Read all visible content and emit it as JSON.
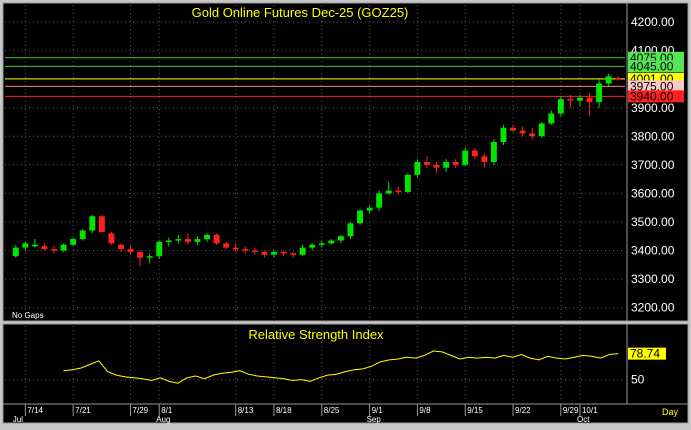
{
  "chart_data": [
    {
      "type": "candlestick",
      "title": "Gold Online Futures Dec-25 (GOZ25)",
      "note": "No Gaps",
      "y_ticks": [
        "3200.00",
        "3300.00",
        "3400.00",
        "3500.00",
        "3600.00",
        "3700.00",
        "3800.00",
        "3900.00",
        "4000.00",
        "4100.00",
        "4200.00"
      ],
      "ylim": [
        3160,
        4260
      ],
      "x_ticks": [
        {
          "label": "7/14",
          "i": 1
        },
        {
          "label": "7/21",
          "i": 6
        },
        {
          "label": "7/29",
          "i": 12
        },
        {
          "label": "8/1",
          "i": 15
        },
        {
          "label": "8/13",
          "i": 23
        },
        {
          "label": "8/18",
          "i": 27
        },
        {
          "label": "8/25",
          "i": 32
        },
        {
          "label": "9/1",
          "i": 37
        },
        {
          "label": "9/8",
          "i": 42
        },
        {
          "label": "9/15",
          "i": 47
        },
        {
          "label": "9/22",
          "i": 52
        },
        {
          "label": "9/29",
          "i": 57
        },
        {
          "label": "10/1",
          "i": 59
        }
      ],
      "month_labels": [
        {
          "label": "Jul",
          "i": 0
        },
        {
          "label": "Aug",
          "i": 15
        },
        {
          "label": "Sep",
          "i": 37
        },
        {
          "label": "Oct",
          "i": 59
        }
      ],
      "period_label": "Day",
      "levels": [
        {
          "value": 4075.0,
          "label": "4075.00",
          "color": "#39c839",
          "label_bg": "#55e655"
        },
        {
          "value": 4045.0,
          "label": "4045.00",
          "color": "#39c839",
          "label_bg": "#55e655"
        },
        {
          "value": 4001.0,
          "label": "4001.00",
          "color": "#ffff00",
          "label_bg": "#ffff00"
        },
        {
          "value": 3975.0,
          "label": "3975.00",
          "color": "#ff8080",
          "label_bg": "#ffc8c8"
        },
        {
          "value": 3940.0,
          "label": "3940.00",
          "color": "#ff2020",
          "label_bg": "#ff2020"
        }
      ],
      "candles": [
        [
          3380,
          3420,
          3375,
          3410
        ],
        [
          3410,
          3430,
          3400,
          3425
        ],
        [
          3420,
          3440,
          3410,
          3420
        ],
        [
          3415,
          3425,
          3400,
          3405
        ],
        [
          3405,
          3415,
          3390,
          3400
        ],
        [
          3400,
          3425,
          3395,
          3420
        ],
        [
          3420,
          3445,
          3415,
          3440
        ],
        [
          3440,
          3475,
          3435,
          3470
        ],
        [
          3470,
          3525,
          3460,
          3520
        ],
        [
          3520,
          3525,
          3460,
          3465
        ],
        [
          3460,
          3465,
          3420,
          3425
        ],
        [
          3420,
          3425,
          3395,
          3405
        ],
        [
          3405,
          3415,
          3385,
          3395
        ],
        [
          3395,
          3400,
          3345,
          3375
        ],
        [
          3375,
          3390,
          3355,
          3380
        ],
        [
          3380,
          3435,
          3370,
          3430
        ],
        [
          3430,
          3445,
          3415,
          3435
        ],
        [
          3435,
          3455,
          3425,
          3440
        ],
        [
          3440,
          3460,
          3420,
          3430
        ],
        [
          3430,
          3450,
          3420,
          3440
        ],
        [
          3440,
          3460,
          3430,
          3455
        ],
        [
          3455,
          3460,
          3420,
          3425
        ],
        [
          3425,
          3430,
          3405,
          3410
        ],
        [
          3410,
          3425,
          3395,
          3405
        ],
        [
          3405,
          3415,
          3390,
          3400
        ],
        [
          3400,
          3410,
          3385,
          3395
        ],
        [
          3395,
          3400,
          3375,
          3385
        ],
        [
          3385,
          3400,
          3375,
          3395
        ],
        [
          3395,
          3400,
          3380,
          3390
        ],
        [
          3390,
          3395,
          3375,
          3385
        ],
        [
          3385,
          3420,
          3380,
          3410
        ],
        [
          3410,
          3425,
          3400,
          3420
        ],
        [
          3420,
          3435,
          3410,
          3425
        ],
        [
          3425,
          3440,
          3420,
          3435
        ],
        [
          3435,
          3455,
          3425,
          3450
        ],
        [
          3450,
          3500,
          3440,
          3495
        ],
        [
          3495,
          3545,
          3490,
          3540
        ],
        [
          3540,
          3560,
          3530,
          3550
        ],
        [
          3550,
          3610,
          3540,
          3600
        ],
        [
          3600,
          3640,
          3595,
          3610
        ],
        [
          3610,
          3625,
          3595,
          3605
        ],
        [
          3605,
          3670,
          3600,
          3665
        ],
        [
          3665,
          3720,
          3655,
          3710
        ],
        [
          3710,
          3730,
          3690,
          3700
        ],
        [
          3700,
          3710,
          3670,
          3690
        ],
        [
          3690,
          3720,
          3675,
          3710
        ],
        [
          3710,
          3720,
          3690,
          3700
        ],
        [
          3700,
          3760,
          3695,
          3750
        ],
        [
          3750,
          3760,
          3720,
          3730
        ],
        [
          3730,
          3740,
          3690,
          3710
        ],
        [
          3710,
          3790,
          3700,
          3780
        ],
        [
          3780,
          3840,
          3770,
          3830
        ],
        [
          3830,
          3840,
          3815,
          3820
        ],
        [
          3820,
          3835,
          3800,
          3810
        ],
        [
          3810,
          3830,
          3790,
          3800
        ],
        [
          3800,
          3850,
          3795,
          3845
        ],
        [
          3845,
          3890,
          3840,
          3880
        ],
        [
          3880,
          3940,
          3870,
          3930
        ],
        [
          3930,
          3945,
          3900,
          3925
        ],
        [
          3925,
          3945,
          3905,
          3935
        ],
        [
          3935,
          3950,
          3870,
          3920
        ],
        [
          3920,
          4000,
          3900,
          3985
        ],
        [
          3985,
          4020,
          3975,
          4010
        ],
        [
          4005,
          4010,
          3995,
          4001
        ]
      ]
    },
    {
      "type": "line",
      "title": "Relative Strength Index",
      "current_label": "78.74",
      "y_ticks": [
        "50"
      ],
      "ylim": [
        25,
        92
      ],
      "values": [
        60,
        61,
        63,
        67,
        71,
        59,
        55,
        53,
        52,
        51,
        49,
        52,
        48,
        46,
        52,
        54,
        51,
        55,
        57,
        58,
        60,
        56,
        54,
        53,
        52,
        51,
        49,
        50,
        48,
        52,
        55,
        56,
        59,
        61,
        62,
        65,
        70,
        72,
        73,
        75,
        74,
        77,
        82,
        81,
        77,
        73,
        75,
        74,
        75,
        74,
        77,
        75,
        78,
        74,
        72,
        76,
        74,
        73,
        75,
        77,
        76,
        74,
        78,
        79
      ]
    }
  ]
}
